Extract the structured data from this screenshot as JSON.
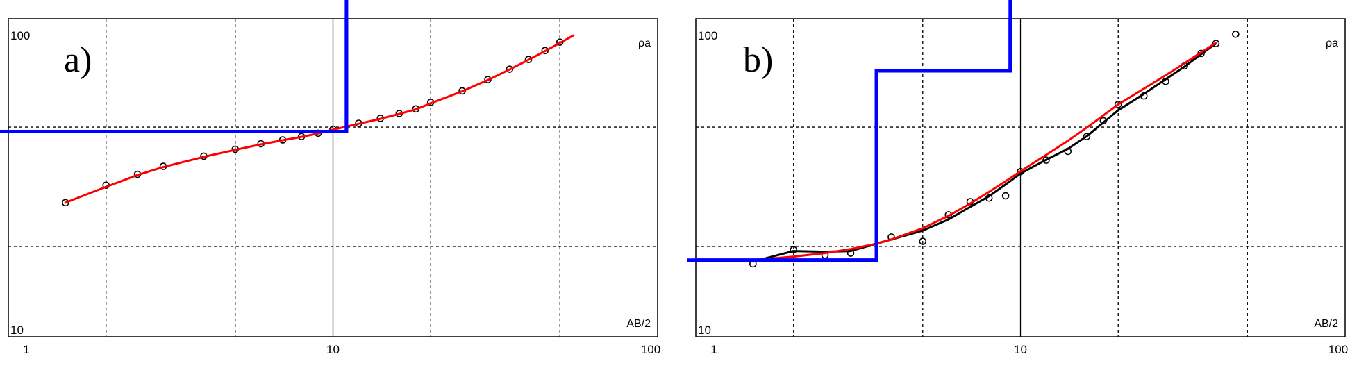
{
  "chart_data": [
    {
      "type": "line",
      "panel_label": "a)",
      "xscale": "log",
      "yscale": "log",
      "xlim": [
        1,
        100
      ],
      "ylim": [
        10,
        100
      ],
      "x_ticks": [
        "1",
        "10",
        "100"
      ],
      "y_ticks": [
        "10",
        "100"
      ],
      "xlabel": "AB/2",
      "ylabel": "ρa",
      "grid": "dashed",
      "series": [
        {
          "kind": "observed-points",
          "color": "#000000",
          "x": [
            1.5,
            2,
            2.5,
            3,
            4,
            5,
            6,
            7,
            8,
            9,
            10,
            12,
            14,
            16,
            18,
            20,
            25,
            30,
            35,
            40,
            45,
            50
          ],
          "y": [
            28,
            32,
            34.8,
            37,
            40,
            42.2,
            44,
            45.3,
            46.5,
            47.7,
            49.2,
            51.5,
            53.5,
            55.5,
            57.5,
            60.5,
            66,
            72,
            78,
            84,
            90,
            96
          ]
        },
        {
          "kind": "model-curve",
          "color": "#ff0000",
          "x": [
            1.5,
            2,
            2.5,
            3,
            4,
            5,
            6,
            7,
            8,
            9,
            10,
            12,
            14,
            16,
            18,
            20,
            25,
            30,
            35,
            40,
            45,
            50,
            55
          ],
          "y": [
            28,
            31.6,
            34.6,
            36.8,
            39.8,
            42,
            43.8,
            45.2,
            46.4,
            47.6,
            49,
            51.3,
            53.3,
            55.3,
            57.3,
            60,
            65.8,
            71.8,
            77.8,
            83.8,
            89.6,
            95.4,
            101
          ]
        },
        {
          "kind": "layer-model",
          "color": "#0000ff",
          "x": [
            0.75,
            11,
            11
          ],
          "y": [
            48.3,
            48.3,
            140
          ]
        }
      ]
    },
    {
      "type": "line",
      "panel_label": "b)",
      "xscale": "log",
      "yscale": "log",
      "xlim": [
        1,
        100
      ],
      "ylim": [
        10,
        100
      ],
      "x_ticks": [
        "1",
        "10",
        "100"
      ],
      "y_ticks": [
        "10",
        "100"
      ],
      "xlabel": "AB/2",
      "ylabel": "ρa",
      "grid": "dashed",
      "series": [
        {
          "kind": "observed-points",
          "color": "#000000",
          "x": [
            1.5,
            2,
            2.5,
            3,
            4,
            5,
            6,
            7,
            8,
            9,
            10,
            12,
            14,
            16,
            18,
            20,
            24,
            28,
            32,
            36,
            40,
            46
          ],
          "y": [
            17.5,
            19.5,
            18.7,
            19,
            21.5,
            20.8,
            25.5,
            28.2,
            29,
            29.5,
            35.5,
            38.8,
            41.5,
            46.5,
            52.5,
            59.5,
            63.5,
            71,
            80,
            88,
            95,
            102
          ]
        },
        {
          "kind": "smoothed-curve",
          "color": "#000000",
          "x": [
            1.5,
            2,
            2.5,
            3,
            4,
            5,
            6,
            7,
            8,
            9,
            10,
            12,
            14,
            16,
            18,
            20,
            24,
            28,
            32,
            36,
            40
          ],
          "y": [
            17.8,
            19.3,
            19.2,
            19.3,
            21.1,
            22.6,
            24.6,
            27.1,
            29.4,
            32.2,
            35,
            38.9,
            42.3,
            46.6,
            51.8,
            56.9,
            64.5,
            72.2,
            79.5,
            87.5,
            95
          ]
        },
        {
          "kind": "model-curve",
          "color": "#ff0000",
          "x": [
            1.5,
            2,
            2.5,
            3,
            3.5,
            4,
            5,
            6,
            7,
            8,
            9,
            10,
            12,
            14,
            16,
            18,
            20,
            25,
            30,
            35,
            40
          ],
          "y": [
            18,
            18.5,
            19,
            19.6,
            20.3,
            21.1,
            23,
            25.3,
            27.8,
            30.4,
            33,
            35.6,
            40.4,
            45,
            49.8,
            54.7,
            59.5,
            69,
            78,
            87,
            95.5
          ]
        },
        {
          "kind": "layer-model",
          "color": "#0000ff",
          "x": [
            0.75,
            3.6,
            3.6,
            9.3,
            9.3
          ],
          "y": [
            18,
            18,
            77,
            77,
            140
          ]
        }
      ]
    }
  ]
}
